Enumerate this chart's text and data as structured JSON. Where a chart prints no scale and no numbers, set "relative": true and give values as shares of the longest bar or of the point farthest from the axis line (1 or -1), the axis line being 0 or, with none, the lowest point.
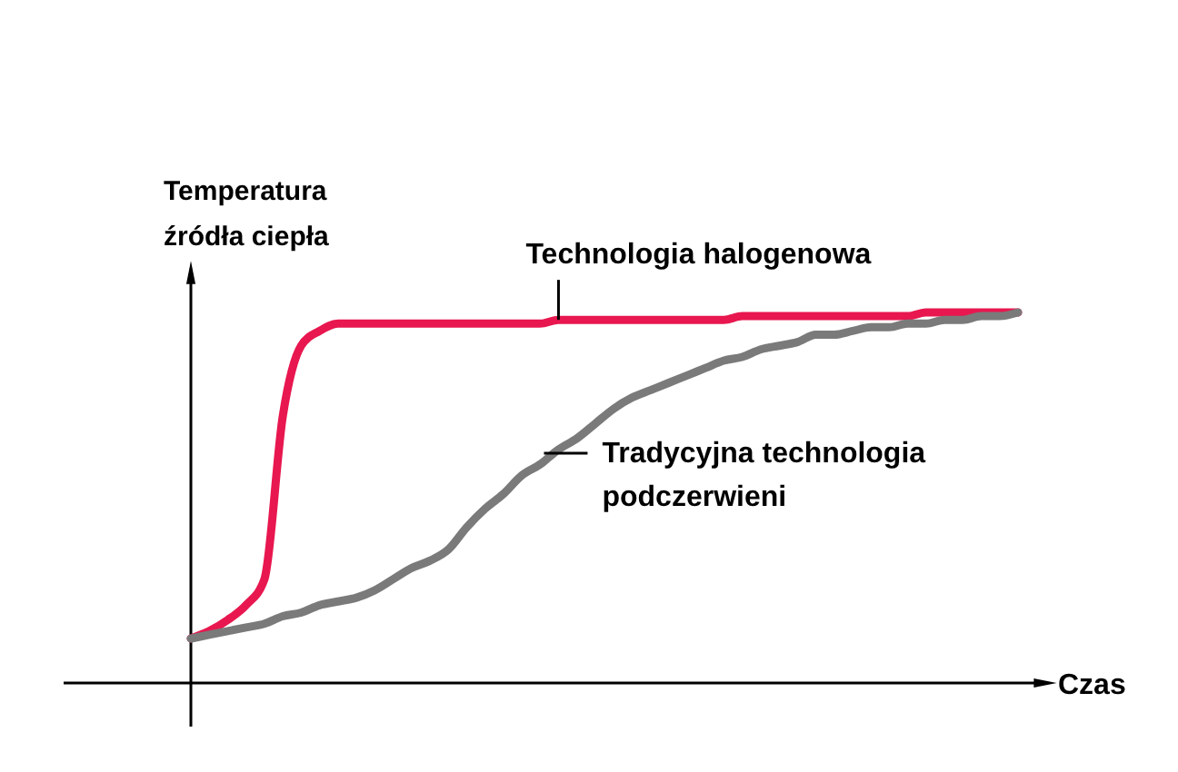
{
  "chart_data": {
    "type": "line",
    "relative": true,
    "xlabel": "Czas",
    "ylabel": "Temperatura źródła ciepła",
    "categories": [
      null,
      null,
      null,
      null,
      null,
      null,
      null,
      null,
      null,
      null,
      null,
      null,
      null,
      null,
      null,
      null,
      null,
      null,
      null,
      null,
      null,
      null,
      null,
      null,
      null,
      null,
      null,
      null,
      null,
      null,
      null,
      null,
      null,
      null,
      null,
      null,
      null,
      null,
      null,
      null,
      null,
      null,
      null,
      null,
      null,
      null
    ],
    "series": [
      {
        "name": "Technologia halogenowa",
        "color": "#e8174f",
        "values": [
          0.12,
          0.14,
          0.17,
          0.21,
          0.28,
          0.72,
          0.91,
          0.95,
          0.97,
          0.97,
          0.97,
          0.97,
          0.97,
          0.97,
          0.97,
          0.97,
          0.97,
          0.97,
          0.97,
          0.97,
          0.98,
          0.98,
          0.98,
          0.98,
          0.98,
          0.98,
          0.98,
          0.98,
          0.98,
          0.98,
          0.99,
          0.99,
          0.99,
          0.99,
          0.99,
          0.99,
          0.99,
          0.99,
          0.99,
          0.99,
          1.0,
          1.0,
          1.0,
          1.0,
          1.0,
          1.0
        ]
      },
      {
        "name": "Tradycyjna technologia podczerwieni",
        "color": "#7a7a7a",
        "values": [
          0.12,
          0.13,
          0.14,
          0.15,
          0.16,
          0.18,
          0.19,
          0.21,
          0.22,
          0.23,
          0.25,
          0.28,
          0.31,
          0.33,
          0.36,
          0.42,
          0.47,
          0.51,
          0.56,
          0.59,
          0.63,
          0.66,
          0.7,
          0.74,
          0.77,
          0.79,
          0.81,
          0.83,
          0.85,
          0.87,
          0.88,
          0.9,
          0.91,
          0.92,
          0.94,
          0.94,
          0.95,
          0.96,
          0.96,
          0.97,
          0.97,
          0.98,
          0.98,
          0.99,
          0.99,
          1.0
        ]
      }
    ]
  }
}
